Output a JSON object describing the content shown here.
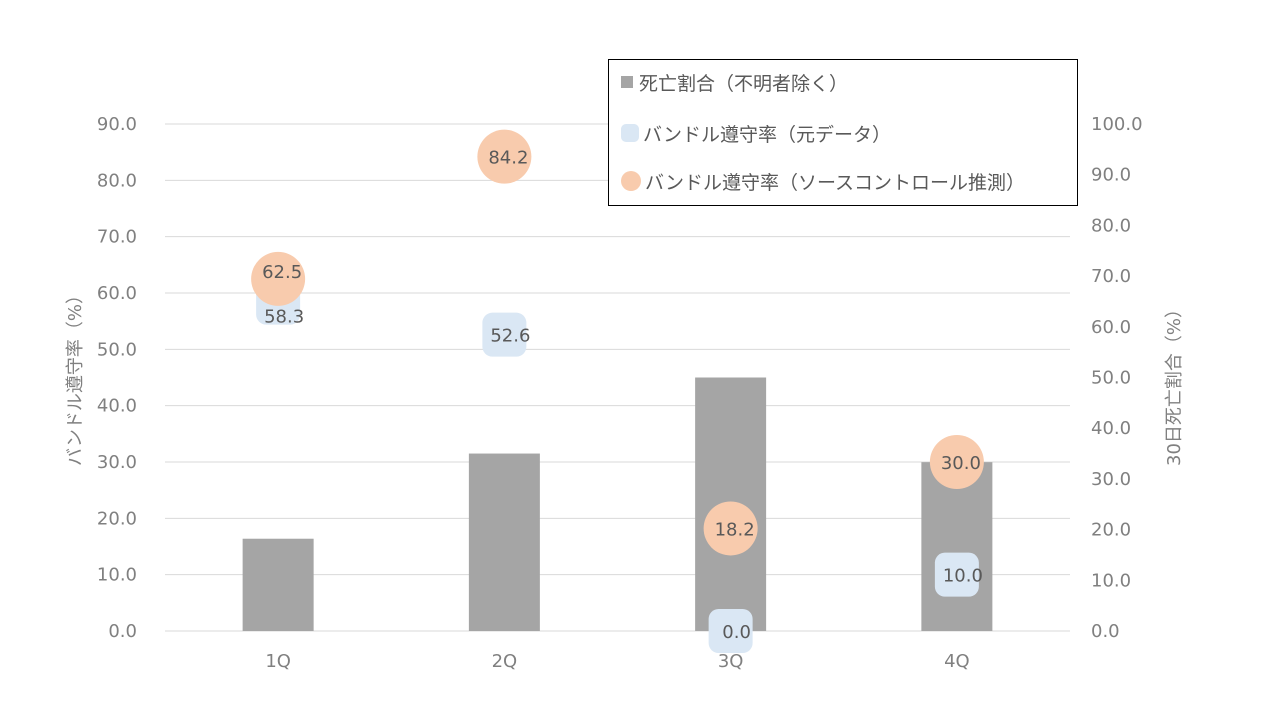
{
  "chart_data": {
    "type": "bar",
    "categories": [
      "1Q",
      "2Q",
      "3Q",
      "4Q"
    ],
    "y_left": {
      "label": "バンドル遵守率（%）",
      "ylim": [
        0,
        90
      ],
      "ticks": [
        "0.0",
        "10.0",
        "20.0",
        "30.0",
        "40.0",
        "50.0",
        "60.0",
        "70.0",
        "80.0",
        "90.0"
      ]
    },
    "y_right": {
      "label": "30日死亡割合（%）",
      "ylim": [
        0,
        100
      ],
      "ticks": [
        "0.0",
        "10.0",
        "20.0",
        "30.0",
        "40.0",
        "50.0",
        "60.0",
        "70.0",
        "80.0",
        "90.0",
        "100.0"
      ]
    },
    "series": [
      {
        "name": "死亡割合（不明者除く）",
        "kind": "bar",
        "axis": "right",
        "color": "#a5a5a5",
        "values": [
          18.2,
          35.0,
          50.0,
          33.3
        ]
      },
      {
        "name": "バンドル遵守率（元データ）",
        "kind": "bubble",
        "axis": "left",
        "color": "#dae7f4",
        "values": [
          58.3,
          52.6,
          0.0,
          10.0
        ],
        "labels": [
          "58.3",
          "52.6",
          "0.0",
          "10.0"
        ]
      },
      {
        "name": "バンドル遵守率（ソースコントロール推測）",
        "kind": "bubble",
        "axis": "left",
        "color": "#f8cbad",
        "values": [
          62.5,
          84.2,
          18.2,
          30.0
        ],
        "labels": [
          "62.5",
          "84.2",
          "18.2",
          "30.0"
        ]
      }
    ],
    "grid": true,
    "legend_position": "top-right"
  }
}
